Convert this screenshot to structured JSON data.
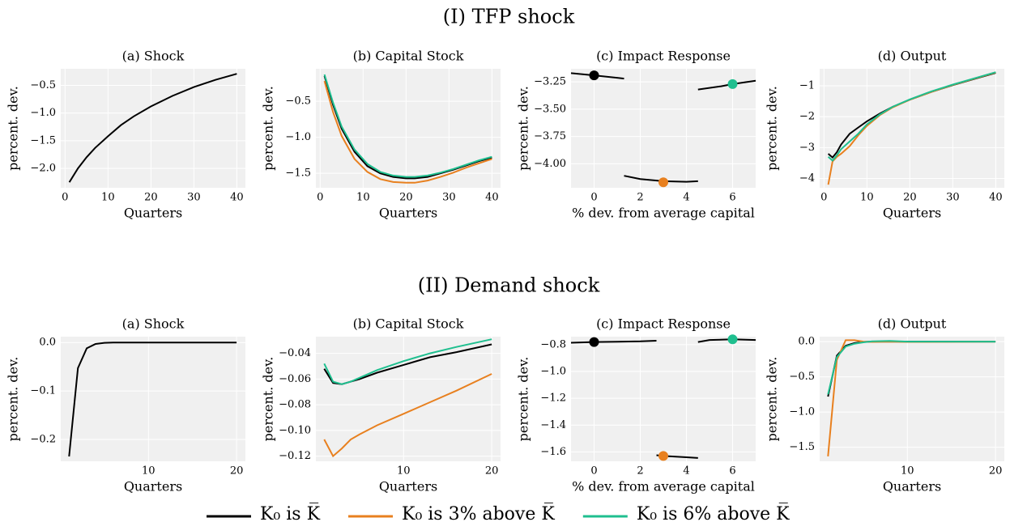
{
  "sections": [
    "(I) TFP shock",
    "(II) Demand shock"
  ],
  "legend": [
    {
      "name": "K₀ is K̅",
      "color": "#000000"
    },
    {
      "name": "K₀ is 3% above K̅",
      "color": "#e8801f"
    },
    {
      "name": "K₀ is 6% above K̅",
      "color": "#1fbf8f"
    }
  ],
  "chart_data": [
    {
      "type": "line",
      "title": "(a) Shock",
      "xlabel": "Quarters",
      "ylabel": "percent. dev.",
      "grid": true,
      "x": [
        1,
        3,
        5,
        7,
        10,
        13,
        16,
        20,
        25,
        30,
        35,
        40
      ],
      "series": [
        {
          "color": "#000000",
          "values": [
            -2.25,
            -2.0,
            -1.8,
            -1.63,
            -1.42,
            -1.22,
            -1.06,
            -0.88,
            -0.69,
            -0.53,
            -0.4,
            -0.29
          ]
        }
      ],
      "xlim": [
        -1,
        42
      ],
      "xticks": [
        0,
        10,
        20,
        30,
        40
      ],
      "ylim": [
        -2.35,
        -0.2
      ],
      "yticks": [
        {
          "value": -2,
          "label": "−2.0"
        },
        {
          "value": -1.5,
          "label": "−1.5"
        },
        {
          "value": -1,
          "label": "−1.0"
        },
        {
          "value": -0.5,
          "label": "−0.5"
        }
      ]
    },
    {
      "type": "line",
      "title": "(b) Capital Stock",
      "xlabel": "Quarters",
      "ylabel": "percent. dev.",
      "grid": true,
      "x": [
        1,
        3,
        5,
        8,
        11,
        14,
        17,
        20,
        22,
        25,
        28,
        31,
        34,
        37,
        40
      ],
      "series": [
        {
          "color": "#000000",
          "values": [
            -0.15,
            -0.55,
            -0.88,
            -1.2,
            -1.4,
            -1.5,
            -1.55,
            -1.57,
            -1.57,
            -1.55,
            -1.5,
            -1.45,
            -1.39,
            -1.33,
            -1.28
          ]
        },
        {
          "color": "#e8801f",
          "values": [
            -0.22,
            -0.65,
            -0.98,
            -1.3,
            -1.48,
            -1.58,
            -1.62,
            -1.63,
            -1.63,
            -1.6,
            -1.55,
            -1.49,
            -1.42,
            -1.36,
            -1.3
          ]
        },
        {
          "color": "#1fbf8f",
          "values": [
            -0.13,
            -0.52,
            -0.85,
            -1.17,
            -1.37,
            -1.48,
            -1.53,
            -1.55,
            -1.55,
            -1.53,
            -1.49,
            -1.44,
            -1.38,
            -1.32,
            -1.27
          ]
        }
      ],
      "xlim": [
        -1,
        42
      ],
      "xticks": [
        0,
        10,
        20,
        30,
        40
      ],
      "ylim": [
        -1.7,
        -0.05
      ],
      "yticks": [
        {
          "value": -1.5,
          "label": "−1.5"
        },
        {
          "value": -1,
          "label": "−1.0"
        },
        {
          "value": -0.5,
          "label": "−0.5"
        }
      ]
    },
    {
      "type": "scatter",
      "title": "(c) Impact Response",
      "xlabel": "% dev. from average capital",
      "ylabel": "percent. dev.",
      "grid": true,
      "series": [
        {
          "color": "#000000",
          "x": [
            -1,
            0,
            1.3,
            null,
            1.3,
            2,
            3,
            4,
            4.5,
            null,
            4.5,
            5.5,
            6,
            7
          ],
          "values": [
            -3.17,
            -3.19,
            -3.22,
            null,
            -4.11,
            -4.14,
            -4.16,
            -4.165,
            -4.16,
            null,
            -3.32,
            -3.29,
            -3.27,
            -3.24
          ]
        }
      ],
      "points": {
        "x": [
          0,
          3,
          6
        ],
        "values": [
          -3.19,
          -4.17,
          -3.27
        ],
        "colors": [
          "#000000",
          "#e8801f",
          "#1fbf8f"
        ]
      },
      "xlim": [
        -1,
        7
      ],
      "xticks": [
        0,
        2,
        4,
        6
      ],
      "ylim": [
        -4.22,
        -3.13
      ],
      "yticks": [
        {
          "value": -4,
          "label": "−4.00"
        },
        {
          "value": -3.75,
          "label": "−3.75"
        },
        {
          "value": -3.5,
          "label": "−3.50"
        },
        {
          "value": -3.25,
          "label": "−3.25"
        }
      ]
    },
    {
      "type": "line",
      "title": "(d) Output",
      "xlabel": "Quarters",
      "ylabel": "percent. dev.",
      "grid": true,
      "x": [
        1,
        2,
        3,
        4,
        6,
        8,
        10,
        13,
        16,
        20,
        25,
        30,
        35,
        40
      ],
      "series": [
        {
          "color": "#000000",
          "values": [
            -3.2,
            -3.32,
            -3.15,
            -2.9,
            -2.55,
            -2.35,
            -2.15,
            -1.9,
            -1.68,
            -1.45,
            -1.2,
            -0.98,
            -0.78,
            -0.58
          ]
        },
        {
          "color": "#e8801f",
          "values": [
            -4.2,
            -3.45,
            -3.3,
            -3.2,
            -2.95,
            -2.6,
            -2.3,
            -1.95,
            -1.7,
            -1.45,
            -1.2,
            -0.97,
            -0.77,
            -0.57
          ]
        },
        {
          "color": "#1fbf8f",
          "values": [
            -3.3,
            -3.42,
            -3.25,
            -3.05,
            -2.8,
            -2.55,
            -2.25,
            -1.93,
            -1.68,
            -1.44,
            -1.18,
            -0.96,
            -0.76,
            -0.56
          ]
        }
      ],
      "xlim": [
        -1,
        42
      ],
      "xticks": [
        0,
        10,
        20,
        30,
        40
      ],
      "ylim": [
        -4.3,
        -0.45
      ],
      "yticks": [
        {
          "value": -4,
          "label": "−4"
        },
        {
          "value": -3,
          "label": "−3"
        },
        {
          "value": -2,
          "label": "−2"
        },
        {
          "value": -1,
          "label": "−1"
        }
      ]
    },
    {
      "type": "line",
      "title": "(a) Shock",
      "xlabel": "Quarters",
      "ylabel": "percent. dev.",
      "grid": true,
      "x": [
        1,
        2,
        3,
        4,
        5,
        6,
        8,
        10,
        15,
        20
      ],
      "series": [
        {
          "color": "#000000",
          "values": [
            -0.235,
            -0.053,
            -0.012,
            -0.003,
            -0.0007,
            -0.0002,
            0,
            0,
            0,
            0
          ]
        }
      ],
      "xlim": [
        0.05,
        21
      ],
      "xticks": [
        10,
        20
      ],
      "ylim": [
        -0.245,
        0.012
      ],
      "yticks": [
        {
          "value": -0.2,
          "label": "−0.2"
        },
        {
          "value": -0.1,
          "label": "−0.1"
        },
        {
          "value": 0,
          "label": "0.0"
        }
      ]
    },
    {
      "type": "line",
      "title": "(b) Capital Stock",
      "xlabel": "Quarters",
      "ylabel": "percent. dev.",
      "grid": true,
      "x": [
        1,
        2,
        3,
        4,
        5,
        7,
        10,
        13,
        16,
        20
      ],
      "series": [
        {
          "color": "#000000",
          "values": [
            -0.052,
            -0.063,
            -0.064,
            -0.062,
            -0.06,
            -0.055,
            -0.049,
            -0.043,
            -0.039,
            -0.033
          ]
        },
        {
          "color": "#e8801f",
          "values": [
            -0.107,
            -0.12,
            -0.114,
            -0.107,
            -0.103,
            -0.096,
            -0.087,
            -0.078,
            -0.069,
            -0.056
          ]
        },
        {
          "color": "#1fbf8f",
          "values": [
            -0.048,
            -0.062,
            -0.064,
            -0.062,
            -0.059,
            -0.053,
            -0.046,
            -0.04,
            -0.035,
            -0.029
          ]
        }
      ],
      "xlim": [
        0.05,
        21
      ],
      "xticks": [
        10,
        20
      ],
      "ylim": [
        -0.124,
        -0.027
      ],
      "yticks": [
        {
          "value": -0.12,
          "label": "−0.12"
        },
        {
          "value": -0.1,
          "label": "−0.10"
        },
        {
          "value": -0.08,
          "label": "−0.08"
        },
        {
          "value": -0.06,
          "label": "−0.06"
        },
        {
          "value": -0.04,
          "label": "−0.04"
        }
      ]
    },
    {
      "type": "scatter",
      "title": "(c) Impact Response",
      "xlabel": "% dev. from average capital",
      "ylabel": "percent. dev.",
      "grid": true,
      "series": [
        {
          "color": "#000000",
          "x": [
            -1,
            0,
            1,
            2,
            2.7,
            null,
            2.7,
            3,
            4,
            4.5,
            null,
            4.5,
            5,
            6,
            7
          ],
          "values": [
            -0.785,
            -0.78,
            -0.778,
            -0.775,
            -0.77,
            null,
            -1.625,
            -1.63,
            -1.64,
            -1.645,
            null,
            -0.78,
            -0.765,
            -0.76,
            -0.765
          ]
        }
      ],
      "points": {
        "x": [
          0,
          3,
          6
        ],
        "values": [
          -0.78,
          -1.63,
          -0.76
        ],
        "colors": [
          "#000000",
          "#e8801f",
          "#1fbf8f"
        ]
      },
      "xlim": [
        -1,
        7
      ],
      "xticks": [
        0,
        2,
        4,
        6
      ],
      "ylim": [
        -1.67,
        -0.74
      ],
      "yticks": [
        {
          "value": -1.6,
          "label": "−1.6"
        },
        {
          "value": -1.4,
          "label": "−1.4"
        },
        {
          "value": -1.2,
          "label": "−1.2"
        },
        {
          "value": -1,
          "label": "−1.0"
        },
        {
          "value": -0.8,
          "label": "−0.8"
        }
      ]
    },
    {
      "type": "line",
      "title": "(d) Output",
      "xlabel": "Quarters",
      "ylabel": "percent. dev.",
      "grid": true,
      "x": [
        1,
        2,
        3,
        4,
        5,
        6,
        8,
        10,
        15,
        20
      ],
      "series": [
        {
          "color": "#000000",
          "values": [
            -0.78,
            -0.2,
            -0.06,
            -0.02,
            -0.005,
            0,
            0,
            0,
            0,
            0
          ]
        },
        {
          "color": "#e8801f",
          "values": [
            -1.63,
            -0.26,
            0.02,
            0.02,
            0,
            -0.005,
            0,
            -0.005,
            -0.003,
            0
          ]
        },
        {
          "color": "#1fbf8f",
          "values": [
            -0.75,
            -0.22,
            -0.07,
            -0.03,
            -0.01,
            0.005,
            0.01,
            0,
            0,
            0
          ]
        }
      ],
      "xlim": [
        0.05,
        21
      ],
      "xticks": [
        10,
        20
      ],
      "ylim": [
        -1.7,
        0.07
      ],
      "yticks": [
        {
          "value": -1.5,
          "label": "−1.5"
        },
        {
          "value": -1,
          "label": "−1.0"
        },
        {
          "value": -0.5,
          "label": "−0.5"
        },
        {
          "value": 0,
          "label": "0.0"
        }
      ]
    }
  ]
}
